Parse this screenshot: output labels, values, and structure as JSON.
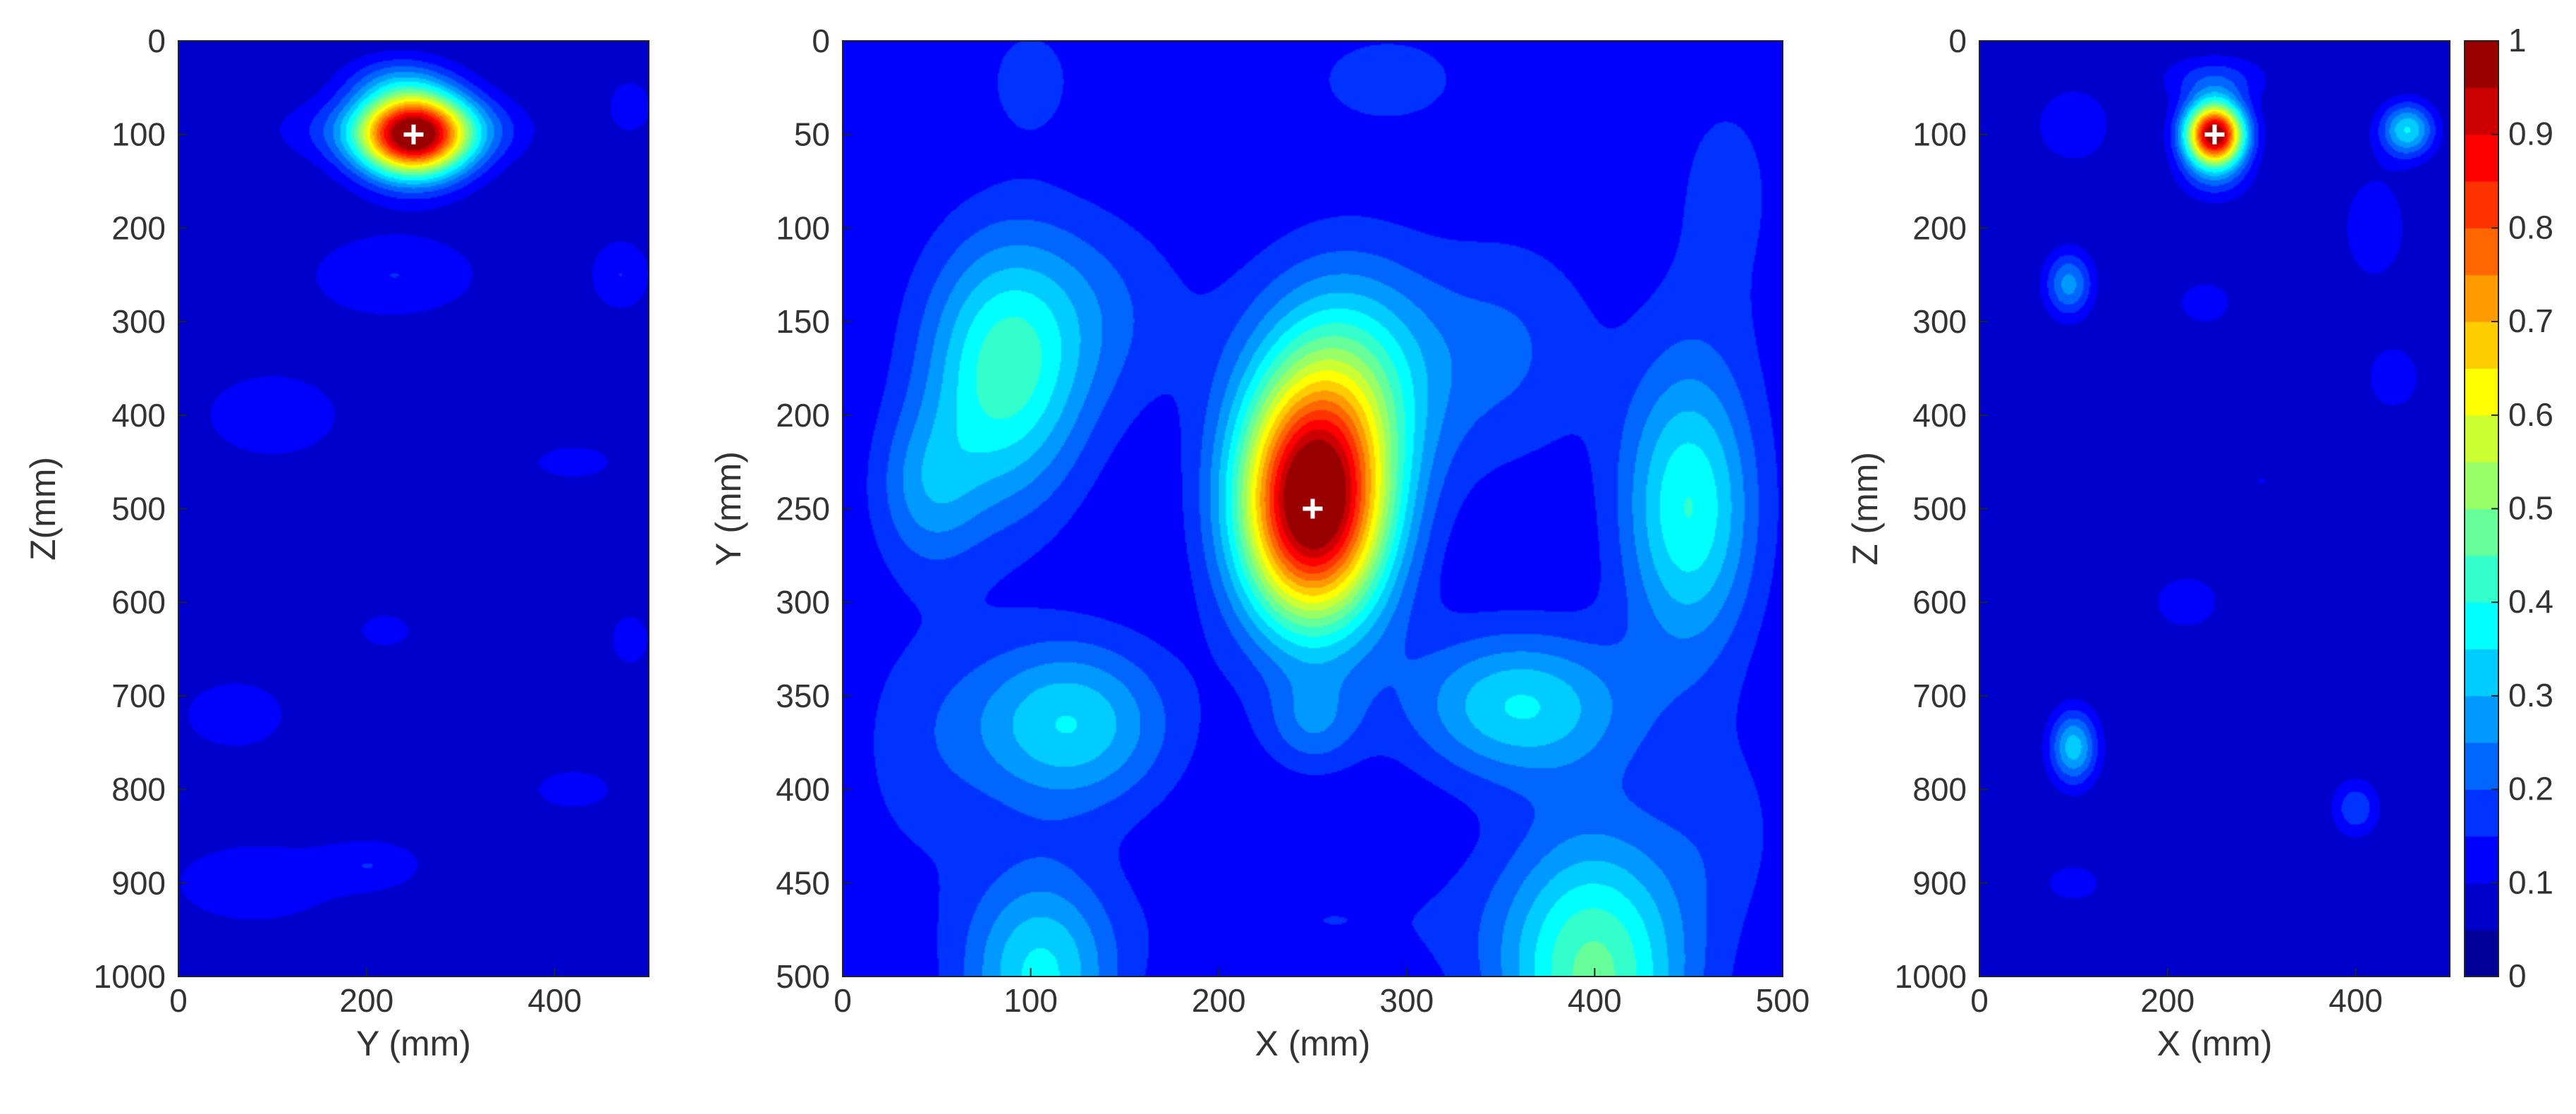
{
  "chart_data": [
    {
      "type": "heatmap",
      "panel": "left",
      "xlabel": "Y (mm)",
      "ylabel": "Z(mm)",
      "xlim": [
        0,
        500
      ],
      "ylim": [
        0,
        1000
      ],
      "y_reversed": true,
      "x_ticks": [
        0,
        200,
        400
      ],
      "y_ticks": [
        0,
        100,
        200,
        300,
        400,
        500,
        600,
        700,
        800,
        900,
        1000
      ],
      "background_level": 0.05,
      "marker": {
        "x": 250,
        "y": 100,
        "symbol": "+",
        "color": "#ffffff"
      },
      "blobs": [
        {
          "x": 250,
          "y": 100,
          "sx": 42,
          "sy": 32,
          "a": 0.97
        },
        {
          "x": 170,
          "y": 95,
          "sx": 60,
          "sy": 25,
          "a": 0.08
        },
        {
          "x": 320,
          "y": 95,
          "sx": 50,
          "sy": 25,
          "a": 0.08
        },
        {
          "x": 230,
          "y": 40,
          "sx": 40,
          "sy": 20,
          "a": 0.1
        },
        {
          "x": 480,
          "y": 70,
          "sx": 25,
          "sy": 30,
          "a": 0.07
        },
        {
          "x": 230,
          "y": 250,
          "sx": 70,
          "sy": 35,
          "a": 0.1
        },
        {
          "x": 470,
          "y": 250,
          "sx": 25,
          "sy": 30,
          "a": 0.1
        },
        {
          "x": 100,
          "y": 400,
          "sx": 80,
          "sy": 50,
          "a": 0.07
        },
        {
          "x": 420,
          "y": 450,
          "sx": 60,
          "sy": 25,
          "a": 0.06
        },
        {
          "x": 220,
          "y": 630,
          "sx": 40,
          "sy": 25,
          "a": 0.06
        },
        {
          "x": 480,
          "y": 640,
          "sx": 30,
          "sy": 40,
          "a": 0.06
        },
        {
          "x": 60,
          "y": 720,
          "sx": 60,
          "sy": 40,
          "a": 0.07
        },
        {
          "x": 420,
          "y": 800,
          "sx": 60,
          "sy": 30,
          "a": 0.06
        },
        {
          "x": 80,
          "y": 900,
          "sx": 80,
          "sy": 40,
          "a": 0.08
        },
        {
          "x": 210,
          "y": 880,
          "sx": 40,
          "sy": 20,
          "a": 0.08
        }
      ]
    },
    {
      "type": "heatmap",
      "panel": "center",
      "xlabel": "X (mm)",
      "ylabel": "Y (mm)",
      "xlim": [
        0,
        500
      ],
      "ylim": [
        0,
        500
      ],
      "y_reversed": true,
      "x_ticks": [
        0,
        100,
        200,
        300,
        400,
        500
      ],
      "y_ticks": [
        0,
        50,
        100,
        150,
        200,
        250,
        300,
        350,
        400,
        450,
        500
      ],
      "background_level": 0.1,
      "marker": {
        "x": 250,
        "y": 250,
        "symbol": "+",
        "color": "#ffffff"
      },
      "blobs": [
        {
          "x": 250,
          "y": 250,
          "sx": 28,
          "sy": 45,
          "a": 0.92
        },
        {
          "x": 268,
          "y": 180,
          "sx": 35,
          "sy": 45,
          "a": 0.28
        },
        {
          "x": 85,
          "y": 180,
          "sx": 30,
          "sy": 50,
          "a": 0.3
        },
        {
          "x": 130,
          "y": 145,
          "sx": 40,
          "sy": 40,
          "a": 0.1
        },
        {
          "x": 45,
          "y": 240,
          "sx": 20,
          "sy": 30,
          "a": 0.14
        },
        {
          "x": 450,
          "y": 250,
          "sx": 25,
          "sy": 55,
          "a": 0.3
        },
        {
          "x": 120,
          "y": 365,
          "sx": 38,
          "sy": 32,
          "a": 0.25
        },
        {
          "x": 360,
          "y": 355,
          "sx": 42,
          "sy": 28,
          "a": 0.25
        },
        {
          "x": 400,
          "y": 500,
          "sx": 35,
          "sy": 55,
          "a": 0.36
        },
        {
          "x": 105,
          "y": 500,
          "sx": 28,
          "sy": 40,
          "a": 0.26
        },
        {
          "x": 355,
          "y": 165,
          "sx": 35,
          "sy": 45,
          "a": 0.1
        },
        {
          "x": 250,
          "y": 365,
          "sx": 18,
          "sy": 18,
          "a": 0.12
        },
        {
          "x": 100,
          "y": 20,
          "sx": 20,
          "sy": 25,
          "a": 0.07
        },
        {
          "x": 290,
          "y": 20,
          "sx": 50,
          "sy": 30,
          "a": 0.06
        },
        {
          "x": 470,
          "y": 80,
          "sx": 30,
          "sy": 60,
          "a": 0.06
        },
        {
          "x": 40,
          "y": 380,
          "sx": 30,
          "sy": 60,
          "a": 0.06
        },
        {
          "x": 470,
          "y": 420,
          "sx": 25,
          "sy": 40,
          "a": 0.06
        },
        {
          "x": 260,
          "y": 470,
          "sx": 80,
          "sy": 30,
          "a": 0.05
        }
      ]
    },
    {
      "type": "heatmap",
      "panel": "right",
      "xlabel": "X (mm)",
      "ylabel": "Z (mm)",
      "xlim": [
        0,
        500
      ],
      "ylim": [
        0,
        1000
      ],
      "y_reversed": true,
      "x_ticks": [
        0,
        200,
        400
      ],
      "y_ticks": [
        0,
        100,
        200,
        300,
        400,
        500,
        600,
        700,
        800,
        900,
        1000
      ],
      "background_level": 0.05,
      "marker": {
        "x": 250,
        "y": 100,
        "symbol": "+",
        "color": "#ffffff"
      },
      "blobs": [
        {
          "x": 250,
          "y": 100,
          "sx": 22,
          "sy": 24,
          "a": 0.97
        },
        {
          "x": 455,
          "y": 95,
          "sx": 20,
          "sy": 20,
          "a": 0.3
        },
        {
          "x": 250,
          "y": 40,
          "sx": 40,
          "sy": 18,
          "a": 0.12
        },
        {
          "x": 100,
          "y": 90,
          "sx": 30,
          "sy": 30,
          "a": 0.1
        },
        {
          "x": 250,
          "y": 150,
          "sx": 30,
          "sy": 20,
          "a": 0.08
        },
        {
          "x": 420,
          "y": 200,
          "sx": 30,
          "sy": 50,
          "a": 0.08
        },
        {
          "x": 95,
          "y": 260,
          "sx": 18,
          "sy": 25,
          "a": 0.22
        },
        {
          "x": 240,
          "y": 280,
          "sx": 25,
          "sy": 20,
          "a": 0.08
        },
        {
          "x": 440,
          "y": 360,
          "sx": 25,
          "sy": 30,
          "a": 0.08
        },
        {
          "x": 100,
          "y": 755,
          "sx": 18,
          "sy": 28,
          "a": 0.28
        },
        {
          "x": 400,
          "y": 820,
          "sx": 18,
          "sy": 22,
          "a": 0.14
        },
        {
          "x": 100,
          "y": 900,
          "sx": 30,
          "sy": 20,
          "a": 0.07
        },
        {
          "x": 220,
          "y": 600,
          "sx": 50,
          "sy": 40,
          "a": 0.06
        },
        {
          "x": 300,
          "y": 470,
          "sx": 60,
          "sy": 40,
          "a": 0.05
        }
      ]
    }
  ],
  "colorbar": {
    "colormap": "jet",
    "range": [
      0,
      1
    ],
    "ticks": [
      "0",
      "0.1",
      "0.2",
      "0.3",
      "0.4",
      "0.5",
      "0.6",
      "0.7",
      "0.8",
      "0.9",
      "1"
    ],
    "levels": 20
  }
}
